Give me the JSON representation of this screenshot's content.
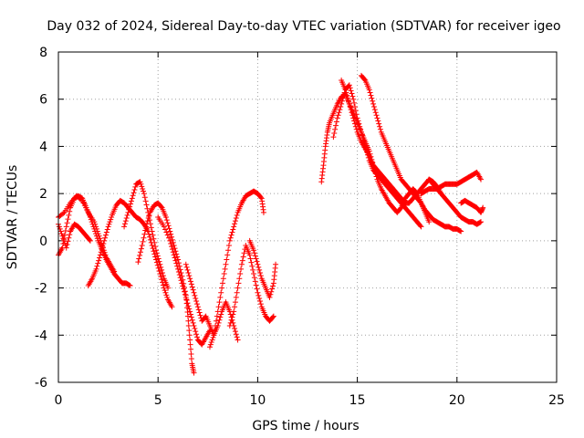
{
  "chart_data": {
    "type": "scatter",
    "title": "Day 032 of 2024, Sidereal Day-to-day VTEC variation (SDTVAR) for receiver igeo",
    "xlabel": "GPS time / hours",
    "ylabel": "SDTVAR / TECUs",
    "xlim": [
      0,
      25
    ],
    "ylim": [
      -6,
      8
    ],
    "xticks": [
      0,
      5,
      10,
      15,
      20,
      25
    ],
    "yticks": [
      -6,
      -4,
      -2,
      0,
      2,
      4,
      6,
      8
    ],
    "grid": true,
    "marker": "+",
    "color": "#ff0000",
    "series": [
      {
        "points": [
          [
            0.0,
            -0.6
          ],
          [
            0.2,
            -0.3
          ],
          [
            0.4,
            0.6
          ],
          [
            0.6,
            1.4
          ],
          [
            0.8,
            1.8
          ],
          [
            1.0,
            1.9
          ],
          [
            1.2,
            1.8
          ],
          [
            1.4,
            1.4
          ],
          [
            1.6,
            1.0
          ],
          [
            1.8,
            0.5
          ],
          [
            2.0,
            0.0
          ],
          [
            2.2,
            -0.4
          ],
          [
            2.4,
            -0.8
          ],
          [
            2.6,
            -1.1
          ],
          [
            2.8,
            -1.4
          ],
          [
            3.0,
            -1.6
          ],
          [
            3.2,
            -1.8
          ],
          [
            3.4,
            -1.8
          ],
          [
            3.6,
            -1.9
          ]
        ]
      },
      {
        "points": [
          [
            0.0,
            0.7
          ],
          [
            0.2,
            0.2
          ],
          [
            0.4,
            -0.3
          ],
          [
            0.6,
            0.4
          ],
          [
            0.8,
            0.7
          ],
          [
            1.0,
            0.6
          ],
          [
            1.2,
            0.4
          ],
          [
            1.4,
            0.2
          ],
          [
            1.6,
            0.0
          ]
        ]
      },
      {
        "points": [
          [
            0.0,
            1.0
          ],
          [
            0.3,
            1.2
          ],
          [
            0.6,
            1.6
          ],
          [
            0.9,
            1.9
          ],
          [
            1.2,
            1.7
          ],
          [
            1.5,
            1.2
          ],
          [
            1.8,
            0.8
          ],
          [
            2.0,
            0.3
          ],
          [
            2.2,
            -0.2
          ],
          [
            2.4,
            -0.7
          ],
          [
            2.6,
            -1.0
          ],
          [
            2.8,
            -1.3
          ]
        ]
      },
      {
        "points": [
          [
            1.5,
            -1.9
          ],
          [
            1.7,
            -1.6
          ],
          [
            1.9,
            -1.2
          ],
          [
            2.1,
            -0.6
          ],
          [
            2.3,
            0.0
          ],
          [
            2.5,
            0.6
          ],
          [
            2.7,
            1.1
          ],
          [
            2.9,
            1.5
          ],
          [
            3.1,
            1.7
          ],
          [
            3.3,
            1.6
          ],
          [
            3.5,
            1.4
          ],
          [
            3.7,
            1.2
          ],
          [
            3.9,
            1.0
          ],
          [
            4.1,
            0.9
          ],
          [
            4.3,
            0.7
          ],
          [
            4.5,
            0.4
          ],
          [
            4.7,
            -0.2
          ],
          [
            4.9,
            -0.8
          ],
          [
            5.1,
            -1.4
          ],
          [
            5.3,
            -2.0
          ],
          [
            5.5,
            -2.5
          ],
          [
            5.7,
            -2.8
          ]
        ]
      },
      {
        "points": [
          [
            3.3,
            0.6
          ],
          [
            3.5,
            1.2
          ],
          [
            3.7,
            1.8
          ],
          [
            3.9,
            2.4
          ],
          [
            4.1,
            2.5
          ],
          [
            4.3,
            2.0
          ],
          [
            4.5,
            1.2
          ],
          [
            4.7,
            0.4
          ],
          [
            4.9,
            -0.4
          ],
          [
            5.1,
            -1.0
          ],
          [
            5.3,
            -1.6
          ],
          [
            5.5,
            -2.0
          ]
        ]
      },
      {
        "points": [
          [
            4.0,
            -0.9
          ],
          [
            4.2,
            -0.2
          ],
          [
            4.4,
            0.6
          ],
          [
            4.6,
            1.2
          ],
          [
            4.8,
            1.5
          ],
          [
            5.0,
            1.6
          ],
          [
            5.2,
            1.4
          ],
          [
            5.4,
            1.0
          ],
          [
            5.6,
            0.4
          ],
          [
            5.8,
            -0.2
          ],
          [
            6.0,
            -0.8
          ],
          [
            6.2,
            -1.5
          ],
          [
            6.4,
            -2.3
          ],
          [
            6.5,
            -3.2
          ],
          [
            6.6,
            -4.2
          ],
          [
            6.7,
            -5.2
          ],
          [
            6.8,
            -5.6
          ]
        ]
      },
      {
        "points": [
          [
            5.0,
            1.0
          ],
          [
            5.3,
            0.6
          ],
          [
            5.6,
            0.0
          ],
          [
            5.8,
            -0.6
          ],
          [
            6.0,
            -1.2
          ],
          [
            6.2,
            -1.8
          ],
          [
            6.4,
            -2.4
          ],
          [
            6.6,
            -3.0
          ],
          [
            6.8,
            -3.6
          ],
          [
            7.0,
            -4.2
          ],
          [
            7.2,
            -4.4
          ],
          [
            7.4,
            -4.1
          ],
          [
            7.6,
            -3.8
          ]
        ]
      },
      {
        "points": [
          [
            6.4,
            -1.0
          ],
          [
            6.6,
            -1.6
          ],
          [
            6.8,
            -2.2
          ],
          [
            7.0,
            -2.8
          ],
          [
            7.2,
            -3.4
          ],
          [
            7.4,
            -3.2
          ],
          [
            7.6,
            -3.6
          ],
          [
            7.8,
            -4.0
          ],
          [
            8.0,
            -3.6
          ],
          [
            8.2,
            -3.0
          ],
          [
            8.4,
            -2.6
          ],
          [
            8.6,
            -3.0
          ],
          [
            8.8,
            -3.6
          ],
          [
            9.0,
            -4.2
          ]
        ]
      },
      {
        "points": [
          [
            7.6,
            -4.5
          ],
          [
            7.8,
            -4.0
          ],
          [
            8.0,
            -3.0
          ],
          [
            8.2,
            -2.0
          ],
          [
            8.4,
            -1.0
          ],
          [
            8.6,
            0.0
          ],
          [
            8.8,
            0.6
          ],
          [
            9.0,
            1.2
          ],
          [
            9.2,
            1.6
          ],
          [
            9.4,
            1.9
          ],
          [
            9.6,
            2.0
          ],
          [
            9.8,
            2.1
          ],
          [
            10.0,
            2.0
          ],
          [
            10.2,
            1.8
          ],
          [
            10.3,
            1.2
          ]
        ]
      },
      {
        "points": [
          [
            8.6,
            -3.6
          ],
          [
            8.8,
            -3.0
          ],
          [
            9.0,
            -2.0
          ],
          [
            9.2,
            -1.0
          ],
          [
            9.4,
            -0.2
          ],
          [
            9.6,
            -0.6
          ],
          [
            9.8,
            -1.4
          ],
          [
            10.0,
            -2.2
          ],
          [
            10.2,
            -2.8
          ],
          [
            10.4,
            -3.2
          ],
          [
            10.6,
            -3.4
          ],
          [
            10.8,
            -3.2
          ]
        ]
      },
      {
        "points": [
          [
            9.6,
            0.0
          ],
          [
            9.8,
            -0.4
          ],
          [
            10.0,
            -1.0
          ],
          [
            10.2,
            -1.6
          ],
          [
            10.4,
            -2.0
          ],
          [
            10.6,
            -2.4
          ],
          [
            10.8,
            -1.8
          ],
          [
            10.9,
            -1.0
          ]
        ]
      },
      {
        "points": [
          [
            13.2,
            2.5
          ],
          [
            13.3,
            3.2
          ],
          [
            13.4,
            4.0
          ],
          [
            13.5,
            4.6
          ],
          [
            13.6,
            5.0
          ],
          [
            13.8,
            5.4
          ],
          [
            14.0,
            5.8
          ],
          [
            14.2,
            6.1
          ],
          [
            14.4,
            6.2
          ],
          [
            14.6,
            5.8
          ],
          [
            14.8,
            5.2
          ],
          [
            15.0,
            4.6
          ],
          [
            15.2,
            4.2
          ],
          [
            15.4,
            3.9
          ],
          [
            15.6,
            3.6
          ],
          [
            15.8,
            3.2
          ],
          [
            16.0,
            3.0
          ],
          [
            16.2,
            2.8
          ],
          [
            16.4,
            2.6
          ],
          [
            16.6,
            2.4
          ],
          [
            16.8,
            2.2
          ],
          [
            17.0,
            2.0
          ],
          [
            17.2,
            1.8
          ],
          [
            17.4,
            1.6
          ],
          [
            17.6,
            1.6
          ],
          [
            17.8,
            1.8
          ],
          [
            18.0,
            2.0
          ],
          [
            18.2,
            2.2
          ],
          [
            18.4,
            2.4
          ],
          [
            18.6,
            2.6
          ],
          [
            18.8,
            2.5
          ],
          [
            19.0,
            2.3
          ],
          [
            19.2,
            2.0
          ]
        ]
      },
      {
        "points": [
          [
            13.8,
            4.4
          ],
          [
            14.0,
            5.2
          ],
          [
            14.2,
            5.8
          ],
          [
            14.4,
            6.4
          ],
          [
            14.6,
            6.6
          ],
          [
            14.8,
            6.0
          ],
          [
            15.0,
            5.2
          ],
          [
            15.2,
            4.6
          ],
          [
            15.4,
            4.2
          ],
          [
            15.6,
            3.8
          ],
          [
            15.8,
            3.2
          ],
          [
            16.0,
            2.6
          ],
          [
            16.2,
            2.2
          ],
          [
            16.4,
            1.9
          ],
          [
            16.6,
            1.6
          ],
          [
            16.8,
            1.4
          ],
          [
            17.0,
            1.2
          ],
          [
            17.2,
            1.4
          ],
          [
            17.4,
            1.8
          ],
          [
            17.6,
            2.0
          ],
          [
            17.8,
            2.2
          ],
          [
            18.0,
            2.0
          ],
          [
            18.2,
            1.6
          ],
          [
            18.4,
            1.2
          ],
          [
            18.6,
            0.8
          ]
        ]
      },
      {
        "points": [
          [
            15.2,
            7.0
          ],
          [
            15.4,
            6.8
          ],
          [
            15.6,
            6.4
          ],
          [
            15.8,
            5.8
          ],
          [
            16.0,
            5.2
          ],
          [
            16.2,
            4.6
          ],
          [
            16.4,
            4.2
          ],
          [
            16.6,
            3.8
          ],
          [
            16.8,
            3.4
          ],
          [
            17.0,
            3.0
          ],
          [
            17.2,
            2.6
          ],
          [
            17.4,
            2.4
          ],
          [
            17.6,
            2.2
          ],
          [
            17.8,
            2.0
          ],
          [
            18.0,
            1.8
          ],
          [
            18.2,
            1.6
          ],
          [
            18.4,
            1.3
          ],
          [
            18.6,
            1.1
          ],
          [
            18.8,
            0.9
          ],
          [
            19.0,
            0.8
          ],
          [
            19.2,
            0.7
          ],
          [
            19.4,
            0.6
          ],
          [
            19.6,
            0.6
          ],
          [
            19.8,
            0.5
          ],
          [
            20.0,
            0.5
          ],
          [
            20.2,
            0.4
          ]
        ]
      },
      {
        "points": [
          [
            14.2,
            6.8
          ],
          [
            14.4,
            6.4
          ],
          [
            14.6,
            5.8
          ],
          [
            14.8,
            5.4
          ],
          [
            15.0,
            5.0
          ],
          [
            15.2,
            4.6
          ],
          [
            15.4,
            4.0
          ],
          [
            15.6,
            3.4
          ],
          [
            15.8,
            3.0
          ],
          [
            16.0,
            2.8
          ],
          [
            16.2,
            2.6
          ],
          [
            16.4,
            2.4
          ],
          [
            16.6,
            2.2
          ],
          [
            16.8,
            2.0
          ],
          [
            17.0,
            1.8
          ],
          [
            17.2,
            1.6
          ],
          [
            17.4,
            1.4
          ],
          [
            17.6,
            1.2
          ],
          [
            17.8,
            1.0
          ],
          [
            18.0,
            0.8
          ],
          [
            18.2,
            0.6
          ]
        ]
      },
      {
        "points": [
          [
            18.6,
            2.6
          ],
          [
            18.8,
            2.4
          ],
          [
            19.0,
            2.2
          ],
          [
            19.2,
            2.0
          ],
          [
            19.4,
            1.8
          ],
          [
            19.6,
            1.6
          ],
          [
            19.8,
            1.4
          ],
          [
            20.0,
            1.2
          ],
          [
            20.2,
            1.0
          ],
          [
            20.4,
            0.9
          ],
          [
            20.6,
            0.8
          ],
          [
            20.8,
            0.8
          ],
          [
            21.0,
            0.7
          ],
          [
            21.2,
            0.8
          ]
        ]
      },
      {
        "points": [
          [
            18.2,
            2.0
          ],
          [
            18.4,
            2.1
          ],
          [
            18.6,
            2.2
          ],
          [
            18.8,
            2.2
          ],
          [
            19.0,
            2.2
          ],
          [
            19.2,
            2.3
          ],
          [
            19.4,
            2.4
          ],
          [
            19.6,
            2.4
          ],
          [
            19.8,
            2.4
          ],
          [
            20.0,
            2.4
          ],
          [
            20.2,
            2.5
          ],
          [
            20.4,
            2.6
          ],
          [
            20.6,
            2.7
          ],
          [
            20.8,
            2.8
          ],
          [
            21.0,
            2.9
          ],
          [
            21.2,
            2.6
          ]
        ]
      },
      {
        "points": [
          [
            20.2,
            1.6
          ],
          [
            20.4,
            1.7
          ],
          [
            20.6,
            1.6
          ],
          [
            20.8,
            1.5
          ],
          [
            21.0,
            1.4
          ],
          [
            21.2,
            1.2
          ],
          [
            21.3,
            1.4
          ]
        ]
      }
    ]
  }
}
